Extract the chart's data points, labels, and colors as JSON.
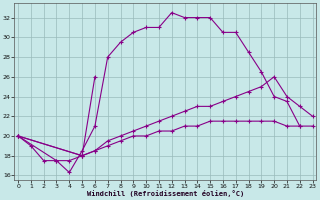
{
  "xlabel": "Windchill (Refroidissement éolien,°C)",
  "bg_color": "#c8e8e8",
  "line_color": "#880088",
  "grid_color": "#99bbbb",
  "xlim": [
    -0.3,
    23.3
  ],
  "ylim": [
    15.5,
    33.5
  ],
  "yticks": [
    16,
    18,
    20,
    22,
    24,
    26,
    28,
    30,
    32
  ],
  "xticks": [
    0,
    1,
    2,
    3,
    4,
    5,
    6,
    7,
    8,
    9,
    10,
    11,
    12,
    13,
    14,
    15,
    16,
    17,
    18,
    19,
    20,
    21,
    22,
    23
  ],
  "line1_x": [
    0,
    1,
    2,
    3,
    4,
    5,
    6,
    7,
    8,
    9,
    10,
    11,
    12,
    13,
    14,
    15,
    16,
    17,
    18,
    19,
    20,
    21,
    22
  ],
  "line1_y": [
    20.0,
    19.0,
    17.5,
    17.5,
    16.3,
    18.5,
    21.0,
    28.0,
    29.5,
    30.5,
    31.0,
    31.0,
    32.5,
    32.0,
    32.0,
    32.0,
    30.5,
    30.5,
    28.5,
    26.5,
    24.0,
    23.5,
    21.0
  ],
  "line2_x": [
    0,
    3,
    4,
    5,
    6
  ],
  "line2_y": [
    20.0,
    17.5,
    17.5,
    18.0,
    26.0
  ],
  "line3_x": [
    0,
    5,
    6,
    7,
    8,
    9,
    10,
    11,
    12,
    13,
    14,
    15,
    16,
    17,
    18,
    19,
    20,
    21,
    22,
    23
  ],
  "line3_y": [
    20.0,
    18.0,
    18.5,
    19.5,
    20.0,
    20.5,
    21.0,
    21.5,
    22.0,
    22.5,
    23.0,
    23.0,
    23.5,
    24.0,
    24.5,
    25.0,
    26.0,
    24.0,
    23.0,
    22.0
  ],
  "line4_x": [
    0,
    5,
    6,
    7,
    8,
    9,
    10,
    11,
    12,
    13,
    14,
    15,
    16,
    17,
    18,
    19,
    20,
    21,
    22,
    23
  ],
  "line4_y": [
    20.0,
    18.0,
    18.5,
    19.0,
    19.5,
    20.0,
    20.0,
    20.5,
    20.5,
    21.0,
    21.0,
    21.5,
    21.5,
    21.5,
    21.5,
    21.5,
    21.5,
    21.0,
    21.0,
    21.0
  ]
}
